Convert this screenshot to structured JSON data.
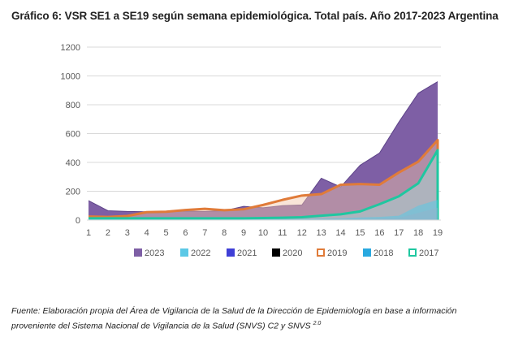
{
  "title": "Gráfico 6: VSR SE1 a SE19 según  semana epidemiológica. Total país. Año 2017-2023 Argentina",
  "source": {
    "line1": "Fuente: Elaboración propia del Área de Vigilancia de la Salud de la Dirección de Epidemiología en base a información",
    "line2": "proveniente del Sistema Nacional de Vigilancia de la Salud (SNVS) C2 y SNVS",
    "superscript": "2.0"
  },
  "chart_data": {
    "type": "area",
    "title": "Gráfico 6: VSR SE1 a SE19 según  semana epidemiológica. Total país. Año 2017-2023 Argentina",
    "xlabel": "",
    "ylabel": "",
    "x": [
      1,
      2,
      3,
      4,
      5,
      6,
      7,
      8,
      9,
      10,
      11,
      12,
      13,
      14,
      15,
      16,
      17,
      18,
      19
    ],
    "x_tick_labels": [
      "1",
      "2",
      "3",
      "4",
      "5",
      "6",
      "7",
      "8",
      "9",
      "10",
      "11",
      "12",
      "13",
      "14",
      "15",
      "16",
      "17",
      "18",
      "19"
    ],
    "ylim": [
      0,
      1200
    ],
    "y_ticks": [
      0,
      200,
      400,
      600,
      800,
      1000,
      1200
    ],
    "y_tick_labels": [
      "0",
      "200",
      "400",
      "600",
      "800",
      "1000",
      "1200"
    ],
    "grid": true,
    "legend_position": "bottom",
    "series": [
      {
        "name": "2023",
        "color": "#7E5FA5",
        "style": "area",
        "values": [
          135,
          65,
          60,
          58,
          58,
          62,
          60,
          65,
          95,
          85,
          100,
          105,
          290,
          230,
          380,
          465,
          680,
          880,
          960
        ]
      },
      {
        "name": "2019",
        "color": "#E07B39",
        "style": "area-outline",
        "values": [
          25,
          22,
          28,
          55,
          58,
          70,
          78,
          68,
          75,
          105,
          140,
          170,
          180,
          245,
          250,
          245,
          330,
          405,
          555
        ]
      },
      {
        "name": "2017",
        "color": "#1FC7A0",
        "style": "area-outline",
        "values": [
          12,
          12,
          12,
          12,
          12,
          12,
          12,
          12,
          12,
          14,
          16,
          20,
          30,
          40,
          60,
          110,
          165,
          255,
          485
        ]
      },
      {
        "name": "2022",
        "color": "#5BC8E6",
        "style": "area",
        "values": [
          5,
          5,
          5,
          5,
          5,
          5,
          5,
          5,
          5,
          6,
          7,
          8,
          10,
          12,
          18,
          22,
          30,
          100,
          140
        ]
      },
      {
        "name": "2018",
        "color": "#8FB4CC",
        "style": "area",
        "values": [
          3,
          3,
          3,
          3,
          3,
          3,
          3,
          3,
          3,
          3,
          3,
          3,
          4,
          5,
          8,
          10,
          15,
          50,
          85
        ]
      },
      {
        "name": "2021",
        "color": "#3F3FD6",
        "style": "area",
        "values": [
          0,
          0,
          0,
          0,
          0,
          0,
          0,
          0,
          0,
          0,
          0,
          0,
          0,
          0,
          0,
          0,
          0,
          0,
          0
        ]
      },
      {
        "name": "2020",
        "color": "#000000",
        "style": "area",
        "values": [
          0,
          0,
          0,
          0,
          0,
          0,
          0,
          0,
          0,
          0,
          0,
          0,
          0,
          0,
          0,
          0,
          0,
          0,
          0
        ]
      }
    ],
    "legend": [
      {
        "label": "2023",
        "color": "#7E5FA5",
        "marker": "filled"
      },
      {
        "label": "2022",
        "color": "#5BC8E6",
        "marker": "filled"
      },
      {
        "label": "2021",
        "color": "#3F3FD6",
        "marker": "filled"
      },
      {
        "label": "2020",
        "color": "#000000",
        "marker": "filled"
      },
      {
        "label": "2019",
        "color": "#E07B39",
        "marker": "outline"
      },
      {
        "label": "2018",
        "color": "#29A9E0",
        "marker": "filled"
      },
      {
        "label": "2017",
        "color": "#1FC7A0",
        "marker": "outline"
      }
    ]
  }
}
